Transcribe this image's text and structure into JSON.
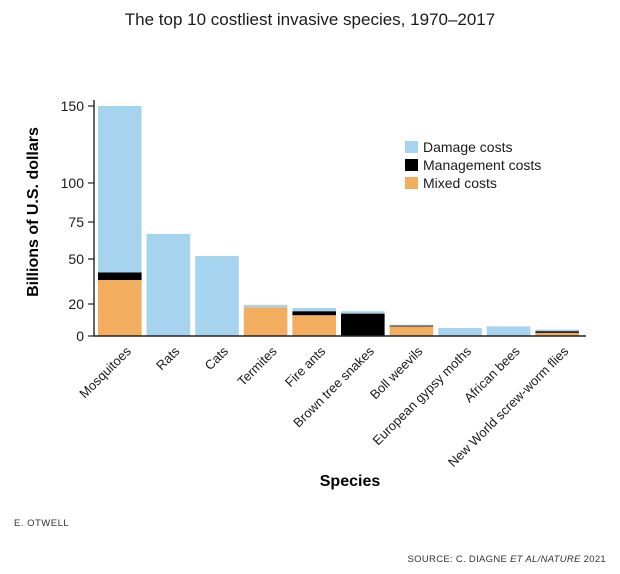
{
  "chart_data": {
    "type": "bar",
    "stacked": true,
    "title": "The top 10 costliest invasive species, 1970–2017",
    "xlabel": "Species",
    "ylabel": "Billions of U.S. dollars",
    "ylim": [
      0,
      155
    ],
    "yticks": [
      0,
      20,
      50,
      75,
      100,
      150
    ],
    "grid": false,
    "legend_position": "top-right",
    "categories": [
      "Mosquitoes",
      "Rats",
      "Cats",
      "Termites",
      "Fire ants",
      "Brown tree snakes",
      "Boll weevils",
      "European gypsy moths",
      "African bees",
      "New World screw-worm flies"
    ],
    "series": [
      {
        "name": "Mixed costs",
        "color": "#f2ad5f",
        "values": [
          36,
          0,
          0,
          18,
          13,
          0,
          6,
          0,
          0,
          2
        ]
      },
      {
        "name": "Management costs",
        "color": "#000000",
        "values": [
          5,
          0,
          0,
          0,
          2.5,
          14,
          0.5,
          0,
          0,
          1
        ]
      },
      {
        "name": "Damage costs",
        "color": "#a6d4ef",
        "values": [
          109,
          67,
          52,
          1.5,
          2,
          1.5,
          0.5,
          5,
          6,
          1
        ]
      }
    ],
    "legend_order": [
      "Damage costs",
      "Management costs",
      "Mixed costs"
    ]
  },
  "credit": "E. OTWELL",
  "source": {
    "prefix": "SOURCE: C. DIAGNE ",
    "italic": "ET AL/NATURE",
    "suffix": " 2021"
  }
}
